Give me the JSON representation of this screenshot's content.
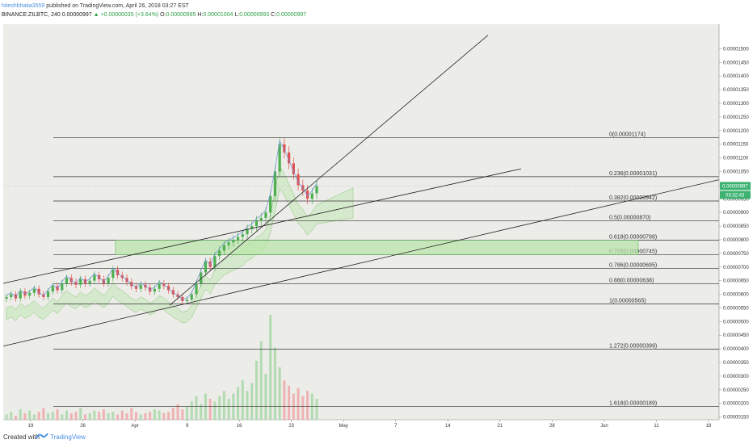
{
  "header": {
    "user": "hiteshbhatia3559",
    "published_text": "published on TradingView.com, April 26, 2018 03:27 EST",
    "symbol": "BINANCE:ZILBTC, 240",
    "price": "0.00000997",
    "change": "▲ +0.00000035 (+3.64%)",
    "open_label": "O:",
    "open": "0.00000995",
    "high_label": "H:",
    "high": "0.00001004",
    "low_label": "L:",
    "low": "0.00000993",
    "close_label": "C:",
    "close": "0.00000997"
  },
  "footer": {
    "created_with": "Created with",
    "brand": "TradingView"
  },
  "price_tag": {
    "value": "0.00000997",
    "timer": "03:32:43",
    "color": "#3cb371"
  },
  "colors": {
    "background": "#ecece8",
    "fib_line": "#333333",
    "zone_fill": "#b8e6a8",
    "zone_stroke": "#5cb85c",
    "candle_up": "#4caf50",
    "candle_down": "#e05050",
    "cloud_green": "#cfe8c4",
    "cloud_red": "#f0d0b0"
  },
  "chart_data": {
    "type": "candlestick",
    "ylim": [
      1.4e-06,
      1.59e-05
    ],
    "y_ticks": [
      "0.00001500",
      "0.00001450",
      "0.00001400",
      "0.00001350",
      "0.00001300",
      "0.00001250",
      "0.00001200",
      "0.00001150",
      "0.00001100",
      "0.00001050",
      "0.00001000",
      "0.00000950",
      "0.00000900",
      "0.00000850",
      "0.00000800",
      "0.00000750",
      "0.00000700",
      "0.00000650",
      "0.00000600",
      "0.00000550",
      "0.00000500",
      "0.00000450",
      "0.00000400",
      "0.00000350",
      "0.00000300",
      "0.00000250",
      "0.00000200",
      "0.00000150"
    ],
    "x_ticks": [
      "19",
      "26",
      "Apr",
      "9",
      "16",
      "23",
      "May",
      "7",
      "14",
      "21",
      "28",
      "Jun",
      "11",
      "18"
    ],
    "fib_levels": [
      {
        "label": "0(0.00001174)",
        "value": 1.174e-05
      },
      {
        "label": "0.236(0.00001031)",
        "value": 1.031e-05
      },
      {
        "label": "0.382(0.00000942)",
        "value": 9.42e-06
      },
      {
        "label": "0.5(0.00000870)",
        "value": 8.7e-06
      },
      {
        "label": "0.618(0.00000798)",
        "value": 7.98e-06
      },
      {
        "label": "0.705(0.00000745)",
        "value": 7.45e-06
      },
      {
        "label": "0.786(0.00000695)",
        "value": 6.95e-06
      },
      {
        "label": "0.88(0.00000638)",
        "value": 6.38e-06
      },
      {
        "label": "1(0.00000565)",
        "value": 5.65e-06
      },
      {
        "label": "1.272(0.00000399)",
        "value": 3.99e-06
      },
      {
        "label": "1.618(0.00000189)",
        "value": 1.89e-06
      }
    ],
    "zone": {
      "from": 7.45e-06,
      "to": 7.98e-06
    },
    "price_series": [
      5.9e-06,
      6e-06,
      5.85e-06,
      6.1e-06,
      5.95e-06,
      6.05e-06,
      6.2e-06,
      6e-06,
      5.9e-06,
      6.1e-06,
      6.3e-06,
      6.15e-06,
      6.4e-06,
      6.6e-06,
      6.45e-06,
      6.35e-06,
      6.55e-06,
      6.4e-06,
      6.5e-06,
      6.7e-06,
      6.55e-06,
      6.4e-06,
      6.6e-06,
      6.9e-06,
      6.7e-06,
      6.6e-06,
      6.45e-06,
      6.3e-06,
      6.2e-06,
      6.35e-06,
      6.25e-06,
      6.1e-06,
      6.2e-06,
      6.4e-06,
      6.3e-06,
      6.15e-06,
      6e-06,
      5.9e-06,
      5.75e-06,
      5.8e-06,
      6e-06,
      6.4e-06,
      6.8e-06,
      7.2e-06,
      7e-06,
      7.4e-06,
      7.6e-06,
      7.8e-06,
      7.9e-06,
      8e-06,
      8.1e-06,
      8.2e-06,
      8.4e-06,
      8.5e-06,
      8.7e-06,
      8.8e-06,
      9e-06,
      9.6e-06,
      1.05e-05,
      1.15e-05,
      1.12e-05,
      1.08e-05,
      1.04e-05,
      1e-05,
      9.8e-06,
      9.5e-06,
      9.7e-06,
      9.97e-06
    ],
    "volume_series": [
      4,
      6,
      3,
      8,
      5,
      7,
      4,
      6,
      9,
      5,
      6,
      8,
      4,
      7,
      5,
      6,
      9,
      4,
      5,
      7,
      6,
      8,
      5,
      6,
      4,
      7,
      5,
      9,
      6,
      4,
      5,
      6,
      8,
      7,
      5,
      6,
      9,
      12,
      8,
      10,
      14,
      18,
      12,
      20,
      16,
      14,
      18,
      22,
      16,
      20,
      25,
      30,
      22,
      28,
      45,
      60,
      35,
      80,
      55,
      40,
      30,
      26,
      20,
      24,
      18,
      22,
      20,
      16
    ]
  }
}
